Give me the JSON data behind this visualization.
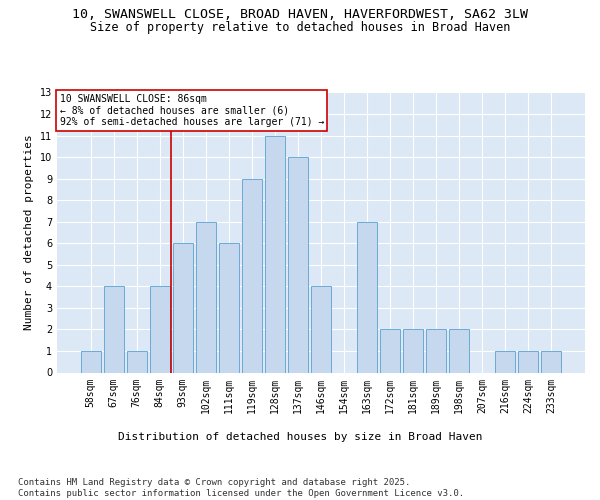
{
  "title_line1": "10, SWANSWELL CLOSE, BROAD HAVEN, HAVERFORDWEST, SA62 3LW",
  "title_line2": "Size of property relative to detached houses in Broad Haven",
  "xlabel": "Distribution of detached houses by size in Broad Haven",
  "ylabel": "Number of detached properties",
  "categories": [
    "58sqm",
    "67sqm",
    "76sqm",
    "84sqm",
    "93sqm",
    "102sqm",
    "111sqm",
    "119sqm",
    "128sqm",
    "137sqm",
    "146sqm",
    "154sqm",
    "163sqm",
    "172sqm",
    "181sqm",
    "189sqm",
    "198sqm",
    "207sqm",
    "216sqm",
    "224sqm",
    "233sqm"
  ],
  "values": [
    1,
    4,
    1,
    4,
    6,
    7,
    6,
    9,
    11,
    10,
    4,
    0,
    7,
    2,
    2,
    2,
    2,
    0,
    1,
    1,
    1
  ],
  "bar_color": "#c5d8ed",
  "bar_edge_color": "#6aaad4",
  "background_color": "#dce8f5",
  "grid_color": "#ffffff",
  "vline_x": 3.5,
  "vline_color": "#cc0000",
  "annotation_text": "10 SWANSWELL CLOSE: 86sqm\n← 8% of detached houses are smaller (6)\n92% of semi-detached houses are larger (71) →",
  "annotation_box_color": "#ffffff",
  "annotation_box_edge": "#cc0000",
  "ylim": [
    0,
    13
  ],
  "yticks": [
    0,
    1,
    2,
    3,
    4,
    5,
    6,
    7,
    8,
    9,
    10,
    11,
    12,
    13
  ],
  "footer_text": "Contains HM Land Registry data © Crown copyright and database right 2025.\nContains public sector information licensed under the Open Government Licence v3.0.",
  "title_fontsize": 9.5,
  "subtitle_fontsize": 8.5,
  "axis_label_fontsize": 8,
  "tick_fontsize": 7,
  "annotation_fontsize": 7,
  "footer_fontsize": 6.5
}
